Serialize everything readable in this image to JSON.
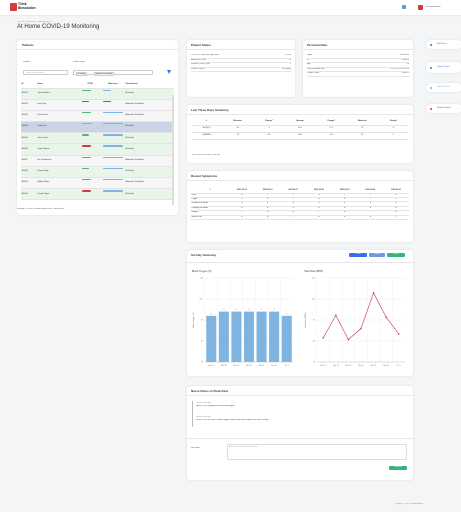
{
  "header": {
    "logo_text": "Think Biosolution",
    "user_name": "Think BioSolution"
  },
  "page": {
    "breadcrumb": "COVID-19 PATIENT DASHBOARD",
    "title": "At Home COVID-19 Monitoring"
  },
  "sidebar": {
    "buttons": [
      {
        "label": "Add Patient"
      },
      {
        "label": "Update Patient"
      },
      {
        "label": "Export Patients"
      },
      {
        "label": "Remove Patient"
      }
    ]
  },
  "patients": {
    "title": "Patients",
    "show_label": "Show At",
    "status_label": "Status/Group",
    "search_placeholder": "Select or filter name",
    "filter_tags": [
      "At Facility",
      "Admission Scheduled"
    ],
    "columns": [
      "ID",
      "Name",
      "CPHR",
      "Adherence",
      "Status/Group"
    ],
    "rows": [
      {
        "id": "000001",
        "name": "Cyko Haddock",
        "status": "At Facility"
      },
      {
        "id": "000002",
        "name": "Ivan Drury",
        "status": "Admission Scheduled"
      },
      {
        "id": "000003",
        "name": "Emma Frost",
        "status": "Admission Scheduled"
      },
      {
        "id": "000004",
        "name": "Dead Kent",
        "status": "At Facility"
      },
      {
        "id": "000005",
        "name": "Jonas Carter",
        "status": "At Facility"
      },
      {
        "id": "000006",
        "name": "Jorge Valerios",
        "status": "At Facility"
      },
      {
        "id": "000007",
        "name": "Eric Powderman",
        "status": "Admission Scheduled"
      },
      {
        "id": "000008",
        "name": "Harvey Rapp",
        "status": "At Facility"
      },
      {
        "id": "000009",
        "name": "Mighty Walton",
        "status": "Admission Scheduled"
      },
      {
        "id": "000010",
        "name": "Dexter Pilgrim",
        "status": "At Facility"
      }
    ],
    "footer": "Showing 1 to 10 of 10 entries (filtered from 27 total entries)"
  },
  "patient_status": {
    "title": "Patient Status",
    "rows": [
      {
        "label": "COVID-19 Daily Warning Score",
        "value": "3.9766"
      },
      {
        "label": "Adherence Score",
        "value": "14"
      },
      {
        "label": "Survival (DWS) Score",
        "value": "4"
      },
      {
        "label": "Patient's Status",
        "value": "At Facility"
      }
    ]
  },
  "personal_data": {
    "title": "Personal Data",
    "rows": [
      {
        "label": "Name",
        "value": "Dead Kent"
      },
      {
        "label": "ID",
        "value": "000004"
      },
      {
        "label": "Age",
        "value": "54"
      },
      {
        "label": "Last Recorded Data",
        "value": "2021-07-14 18:09:00"
      },
      {
        "label": "Patient Token",
        "value": "4041D1"
      }
    ]
  },
  "last3": {
    "title": "Last Three Days Summary",
    "columns": [
      "#",
      "Minimum",
      "Change*",
      "Average",
      "Change*",
      "Maximum",
      "Change*"
    ],
    "rows": [
      [
        "SpO2(%)",
        "89",
        "-2",
        "93.4",
        "+1.5",
        "97",
        "+2"
      ],
      [
        "HR(BPM)",
        "70",
        "-16",
        "83.4",
        "-2.6",
        "92",
        "0"
      ]
    ],
    "note": "* With Respect to Previous Three Days"
  },
  "symptoms": {
    "title": "Recent Symptoms",
    "columns": [
      "#",
      "2021-06-10",
      "2021-06-13",
      "2021-06-17",
      "2021-06-20",
      "2021-06-23",
      "2021-06-24",
      "2021-06-27"
    ],
    "rows": [
      {
        "label": "Fever",
        "marks": [
          "x",
          "v",
          "v",
          "x",
          "v",
          "v",
          "x"
        ]
      },
      {
        "label": "Cough",
        "marks": [
          "v",
          "x",
          "v",
          "x",
          "x",
          "v",
          "v"
        ]
      },
      {
        "label": "Shortness of Breath",
        "marks": [
          "x",
          "x",
          "x",
          "x",
          "x",
          "x",
          "x"
        ]
      },
      {
        "label": "Coughing up Blood",
        "marks": [
          "x",
          "x",
          "x",
          "x",
          "x",
          "x",
          "x"
        ]
      },
      {
        "label": "Fatigue",
        "marks": [
          "v",
          "x",
          "x",
          "v",
          "x",
          "v",
          "x"
        ]
      },
      {
        "label": "Muscle Pain",
        "marks": [
          "x",
          "x",
          "v",
          "x",
          "x",
          "x",
          "v"
        ]
      }
    ]
  },
  "six_day": {
    "title": "Six Day Summary",
    "buttons": [
      "1 Week",
      "2 Weeks",
      "1 Month"
    ],
    "icons": {
      "check": "✓",
      "cross": "✕"
    }
  },
  "chart_data": [
    {
      "type": "bar",
      "title": "Blood Oxygen (%)",
      "ylabel": "Blood Oxygen (%)",
      "categories": [
        "Mar 17",
        "Mar 18",
        "Mar 19",
        "Mar 20",
        "Mar 21",
        "Mar 22",
        "Jul 1"
      ],
      "values": [
        91,
        92,
        92,
        92,
        92,
        92,
        91
      ],
      "ylim": [
        80,
        100
      ],
      "yticks": [
        "100",
        "95%",
        "90",
        "85",
        "80"
      ],
      "color": "#7fb3e0"
    },
    {
      "type": "line",
      "title": "Heart Rate (BPM)",
      "ylabel": "Heart Rate (BPM)",
      "categories": [
        "Mar 17",
        "Mar 18",
        "Mar 19",
        "Mar 20",
        "Mar 21",
        "Mar 22",
        "Jul 1"
      ],
      "values": [
        83,
        95,
        82,
        88,
        107,
        94,
        85
      ],
      "ylim": [
        70,
        115
      ],
      "yticks": [
        "110",
        "100",
        "90",
        "80",
        "70"
      ],
      "color": "#c8384f"
    }
  ],
  "notes": {
    "title": "Nurse Notes of Clark Kent",
    "entries": [
      {
        "time": "2021-06-14 10:08:09",
        "text": "Nurse 12:34: Symptoms are declining again."
      },
      {
        "time": "2021-06-11 10:00:0",
        "text": "Nurse 12:34: Mr Kent's Blood Oxygen levels have been stable in the last few days."
      }
    ],
    "new_note_label": "New Note",
    "new_note_placeholder": "Add a new note from nurse here",
    "submit_label": "Add Note"
  },
  "footer": {
    "copyright": "Copyright © 2021 Think BioSolution"
  }
}
